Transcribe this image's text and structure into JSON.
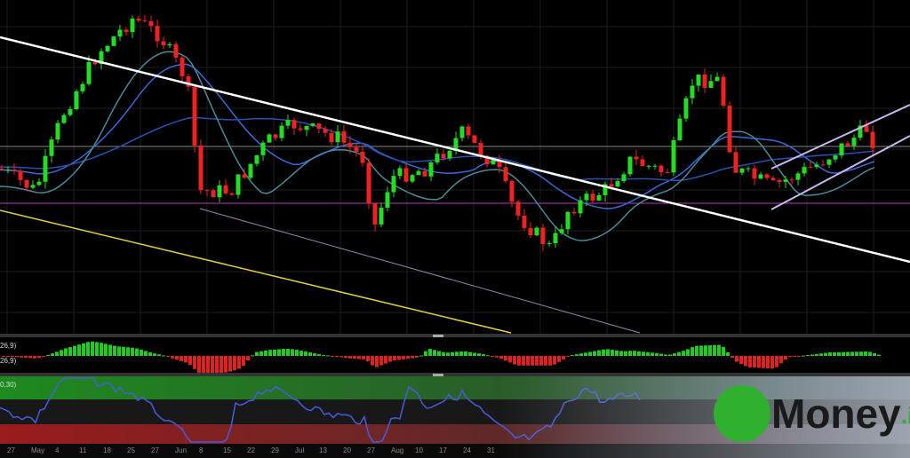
{
  "indicator_labels": [
    "26,9)",
    "26,9)",
    "0,30)"
  ],
  "x_axis_labels": [
    "27",
    "May",
    "4",
    "11",
    "18",
    "25",
    "27",
    "Jun",
    "8",
    "15",
    "22",
    "29",
    "Jul",
    "13",
    "20",
    "27",
    "Aug",
    "10",
    "17",
    "24",
    "31"
  ],
  "logo": {
    "name": "Money",
    "suffix": ".it"
  }
}
